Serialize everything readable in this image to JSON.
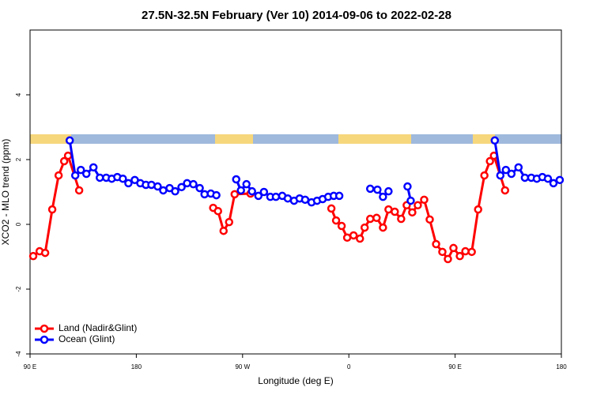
{
  "chart_data": {
    "type": "line",
    "title": "27.5N-32.5N February (Ver 10)   2014-09-06 to 2022-02-28",
    "x_label": "Longitude (deg E)",
    "y_label": "XCO2 - MLO trend (ppm)",
    "xlim": [
      90,
      540
    ],
    "ylim": [
      -4,
      6
    ],
    "xticks": [
      {
        "value": 90,
        "label": "90 E"
      },
      180,
      {
        "value": 270,
        "label": "90 W"
      },
      {
        "value": 360,
        "label": "0"
      },
      {
        "value": 450,
        "label": "90 E"
      },
      {
        "value": 540,
        "label": "180"
      }
    ],
    "yticks": [
      -4,
      -2,
      0,
      2,
      4
    ],
    "legend": "bottom-left",
    "series": [
      {
        "name": "Land (Nadir&Glint)",
        "color": "#ff0000",
        "x": [
          92.7,
          98.1,
          102.8,
          108.8,
          114.2,
          118.9,
          122.2,
          131.6,
          null,
          245.1,
          249.2,
          253.9,
          258.6,
          263.3,
          276.7,
          null,
          345.2,
          349.2,
          353.9,
          358.6,
          364.0,
          369.4,
          373.4,
          378.1,
          383.5,
          388.9,
          393.6,
          398.9,
          404.3,
          409.0,
          413.7,
          418.4,
          423.8,
          428.5,
          433.9,
          439.2,
          443.9,
          448.6,
          454.0,
          458.7,
          464.1,
          469.5,
          474.8,
          479.5,
          482.9,
          492.3
        ],
        "values": [
          -0.98,
          -0.83,
          -0.88,
          0.46,
          1.51,
          1.95,
          2.12,
          1.05,
          null,
          0.51,
          0.41,
          -0.2,
          0.07,
          0.93,
          0.95,
          null,
          0.49,
          0.12,
          -0.05,
          -0.41,
          -0.34,
          -0.44,
          -0.1,
          0.17,
          0.2,
          -0.1,
          0.46,
          0.39,
          0.17,
          0.59,
          0.37,
          0.59,
          0.76,
          0.15,
          -0.61,
          -0.85,
          -1.07,
          -0.73,
          -0.98,
          -0.83,
          -0.85,
          0.46,
          1.51,
          1.95,
          2.12,
          1.05
        ]
      },
      {
        "name": "Ocean (Glint)",
        "color": "#0000ff",
        "x": [
          123.6,
          128.3,
          133.0,
          137.7,
          143.7,
          149.1,
          154.5,
          159.2,
          163.9,
          168.6,
          173.3,
          178.7,
          183.4,
          188.1,
          192.8,
          198.1,
          202.8,
          208.2,
          212.9,
          218.3,
          223.0,
          228.3,
          233.7,
          237.8,
          243.1,
          247.8,
          null,
          264.6,
          268.6,
          273.3,
          278.0,
          283.4,
          288.1,
          293.5,
          298.2,
          303.6,
          308.3,
          313.6,
          318.3,
          323.0,
          328.4,
          333.1,
          337.8,
          342.5,
          347.2,
          351.9,
          null,
          378.1,
          384.2,
          388.9,
          393.6,
          null,
          409.7,
          412.4,
          null,
          483.6,
          488.3,
          493.0,
          497.7,
          503.7,
          509.1,
          514.5,
          519.2,
          523.9,
          528.6,
          533.3,
          538.6
        ],
        "values": [
          2.59,
          1.51,
          1.68,
          1.56,
          1.76,
          1.44,
          1.44,
          1.41,
          1.46,
          1.41,
          1.27,
          1.37,
          1.27,
          1.22,
          1.22,
          1.17,
          1.05,
          1.12,
          1.02,
          1.15,
          1.27,
          1.24,
          1.12,
          0.93,
          0.95,
          0.9,
          null,
          1.39,
          1.05,
          1.24,
          1.02,
          0.88,
          1.0,
          0.85,
          0.85,
          0.88,
          0.8,
          0.73,
          0.8,
          0.76,
          0.68,
          0.73,
          0.78,
          0.85,
          0.88,
          0.88,
          null,
          1.1,
          1.07,
          0.85,
          1.02,
          null,
          1.17,
          0.73,
          null,
          2.59,
          1.51,
          1.68,
          1.56,
          1.76,
          1.44,
          1.44,
          1.41,
          1.46,
          1.41,
          1.27,
          1.37
        ]
      }
    ]
  }
}
